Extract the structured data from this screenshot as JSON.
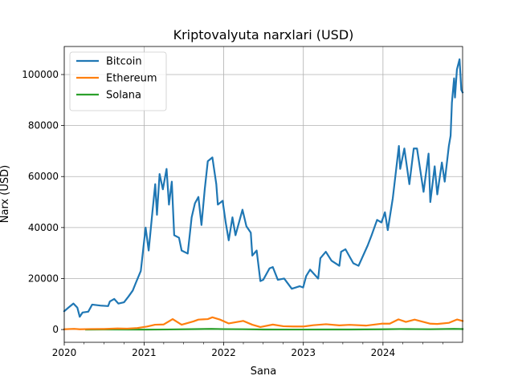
{
  "chart_data": {
    "type": "line",
    "title": "Kriptovalyuta narxlari (USD)",
    "xlabel": "Sana",
    "ylabel": "Narx (USD)",
    "xlim": [
      "2020-01-01",
      "2024-12-31"
    ],
    "ylim": [
      -5000,
      111000
    ],
    "x_ticks": [
      {
        "date": "2020-01-01",
        "label": "2020"
      },
      {
        "date": "2021-01-01",
        "label": "2021"
      },
      {
        "date": "2022-01-01",
        "label": "2022"
      },
      {
        "date": "2023-01-01",
        "label": "2023"
      },
      {
        "date": "2024-01-01",
        "label": "2024"
      }
    ],
    "x_minor_ticks": [
      "2020-04-01",
      "2020-07-01",
      "2020-10-01",
      "2021-04-01",
      "2021-07-01",
      "2021-10-01",
      "2022-04-01",
      "2022-07-01",
      "2022-10-01",
      "2023-04-01",
      "2023-07-01",
      "2023-10-01",
      "2024-04-01",
      "2024-07-01",
      "2024-10-01"
    ],
    "y_ticks": [
      {
        "value": 0,
        "label": "0"
      },
      {
        "value": 20000,
        "label": "20000"
      },
      {
        "value": 40000,
        "label": "40000"
      },
      {
        "value": 60000,
        "label": "60000"
      },
      {
        "value": 80000,
        "label": "80000"
      },
      {
        "value": 100000,
        "label": "100000"
      }
    ],
    "grid": true,
    "legend": "top-left",
    "series": [
      {
        "name": "Bitcoin",
        "color": "#1f77b4",
        "points": [
          [
            "2020-01-01",
            7200
          ],
          [
            "2020-01-20",
            8600
          ],
          [
            "2020-02-12",
            10200
          ],
          [
            "2020-03-01",
            8600
          ],
          [
            "2020-03-12",
            5000
          ],
          [
            "2020-03-25",
            6700
          ],
          [
            "2020-04-20",
            7000
          ],
          [
            "2020-05-08",
            9800
          ],
          [
            "2020-06-15",
            9400
          ],
          [
            "2020-07-20",
            9200
          ],
          [
            "2020-07-28",
            11000
          ],
          [
            "2020-08-17",
            12000
          ],
          [
            "2020-09-05",
            10200
          ],
          [
            "2020-10-01",
            10700
          ],
          [
            "2020-10-21",
            12900
          ],
          [
            "2020-11-10",
            15300
          ],
          [
            "2020-11-25",
            18500
          ],
          [
            "2020-12-17",
            23000
          ],
          [
            "2021-01-08",
            40000
          ],
          [
            "2021-01-22",
            31000
          ],
          [
            "2021-02-08",
            46000
          ],
          [
            "2021-02-21",
            57000
          ],
          [
            "2021-03-01",
            45000
          ],
          [
            "2021-03-13",
            61000
          ],
          [
            "2021-03-28",
            55000
          ],
          [
            "2021-04-14",
            63000
          ],
          [
            "2021-04-25",
            49000
          ],
          [
            "2021-05-08",
            58000
          ],
          [
            "2021-05-19",
            37000
          ],
          [
            "2021-06-10",
            36000
          ],
          [
            "2021-06-22",
            31000
          ],
          [
            "2021-07-20",
            29800
          ],
          [
            "2021-08-07",
            44000
          ],
          [
            "2021-08-22",
            49500
          ],
          [
            "2021-09-07",
            52000
          ],
          [
            "2021-09-21",
            41000
          ],
          [
            "2021-10-06",
            55000
          ],
          [
            "2021-10-20",
            66000
          ],
          [
            "2021-11-10",
            67500
          ],
          [
            "2021-11-28",
            57000
          ],
          [
            "2021-12-05",
            49000
          ],
          [
            "2021-12-27",
            50500
          ],
          [
            "2022-01-10",
            42000
          ],
          [
            "2022-01-24",
            35000
          ],
          [
            "2022-02-10",
            44000
          ],
          [
            "2022-02-24",
            37000
          ],
          [
            "2022-03-28",
            47000
          ],
          [
            "2022-04-15",
            40500
          ],
          [
            "2022-05-05",
            38000
          ],
          [
            "2022-05-12",
            29000
          ],
          [
            "2022-06-01",
            31000
          ],
          [
            "2022-06-18",
            19000
          ],
          [
            "2022-07-01",
            19500
          ],
          [
            "2022-07-30",
            24000
          ],
          [
            "2022-08-14",
            24500
          ],
          [
            "2022-09-06",
            19500
          ],
          [
            "2022-10-05",
            20000
          ],
          [
            "2022-11-09",
            16000
          ],
          [
            "2022-12-15",
            17000
          ],
          [
            "2022-12-31",
            16500
          ],
          [
            "2023-01-14",
            21000
          ],
          [
            "2023-02-01",
            23500
          ],
          [
            "2023-03-10",
            20000
          ],
          [
            "2023-03-20",
            28000
          ],
          [
            "2023-04-14",
            30500
          ],
          [
            "2023-05-10",
            27000
          ],
          [
            "2023-06-15",
            25000
          ],
          [
            "2023-06-23",
            30500
          ],
          [
            "2023-07-13",
            31500
          ],
          [
            "2023-08-18",
            26000
          ],
          [
            "2023-09-11",
            25000
          ],
          [
            "2023-10-23",
            33000
          ],
          [
            "2023-11-10",
            37000
          ],
          [
            "2023-12-05",
            43000
          ],
          [
            "2023-12-25",
            42000
          ],
          [
            "2024-01-10",
            46000
          ],
          [
            "2024-01-23",
            39000
          ],
          [
            "2024-02-15",
            51500
          ],
          [
            "2024-02-28",
            61000
          ],
          [
            "2024-03-14",
            72000
          ],
          [
            "2024-03-20",
            63000
          ],
          [
            "2024-04-08",
            71000
          ],
          [
            "2024-05-01",
            57000
          ],
          [
            "2024-05-21",
            71000
          ],
          [
            "2024-06-05",
            71000
          ],
          [
            "2024-07-05",
            54000
          ],
          [
            "2024-07-28",
            69000
          ],
          [
            "2024-08-05",
            50000
          ],
          [
            "2024-08-25",
            64000
          ],
          [
            "2024-09-06",
            53000
          ],
          [
            "2024-09-27",
            65500
          ],
          [
            "2024-10-10",
            58000
          ],
          [
            "2024-10-29",
            72000
          ],
          [
            "2024-11-06",
            76000
          ],
          [
            "2024-11-12",
            89000
          ],
          [
            "2024-11-22",
            98500
          ],
          [
            "2024-11-26",
            91000
          ],
          [
            "2024-12-05",
            102000
          ],
          [
            "2024-12-17",
            106000
          ],
          [
            "2024-12-25",
            94000
          ],
          [
            "2024-12-31",
            93000
          ]
        ]
      },
      {
        "name": "Ethereum",
        "color": "#ff7f0e",
        "points": [
          [
            "2020-01-01",
            130
          ],
          [
            "2020-02-15",
            280
          ],
          [
            "2020-03-12",
            110
          ],
          [
            "2020-05-01",
            210
          ],
          [
            "2020-07-01",
            230
          ],
          [
            "2020-09-01",
            430
          ],
          [
            "2020-10-15",
            370
          ],
          [
            "2020-12-01",
            600
          ],
          [
            "2021-01-15",
            1200
          ],
          [
            "2021-02-20",
            1900
          ],
          [
            "2021-04-01",
            2000
          ],
          [
            "2021-05-12",
            4100
          ],
          [
            "2021-06-22",
            1900
          ],
          [
            "2021-08-15",
            3200
          ],
          [
            "2021-09-07",
            3900
          ],
          [
            "2021-10-20",
            4100
          ],
          [
            "2021-11-10",
            4800
          ],
          [
            "2021-12-15",
            3900
          ],
          [
            "2022-01-24",
            2400
          ],
          [
            "2022-03-31",
            3400
          ],
          [
            "2022-05-12",
            1900
          ],
          [
            "2022-06-18",
            1000
          ],
          [
            "2022-08-14",
            1950
          ],
          [
            "2022-10-01",
            1300
          ],
          [
            "2022-11-15",
            1200
          ],
          [
            "2023-01-01",
            1200
          ],
          [
            "2023-02-15",
            1700
          ],
          [
            "2023-04-15",
            2100
          ],
          [
            "2023-06-15",
            1650
          ],
          [
            "2023-08-01",
            1850
          ],
          [
            "2023-10-15",
            1550
          ],
          [
            "2023-12-25",
            2300
          ],
          [
            "2024-02-01",
            2300
          ],
          [
            "2024-03-12",
            4000
          ],
          [
            "2024-04-15",
            3000
          ],
          [
            "2024-05-25",
            3900
          ],
          [
            "2024-08-05",
            2300
          ],
          [
            "2024-09-06",
            2200
          ],
          [
            "2024-10-30",
            2650
          ],
          [
            "2024-12-06",
            3950
          ],
          [
            "2024-12-31",
            3350
          ]
        ]
      },
      {
        "name": "Solana",
        "color": "#2ca02c",
        "points": [
          [
            "2020-04-10",
            0.8
          ],
          [
            "2020-09-01",
            4
          ],
          [
            "2020-12-31",
            1.5
          ],
          [
            "2021-03-01",
            15
          ],
          [
            "2021-05-01",
            45
          ],
          [
            "2021-09-06",
            190
          ],
          [
            "2021-11-06",
            258
          ],
          [
            "2022-01-01",
            170
          ],
          [
            "2022-04-01",
            125
          ],
          [
            "2022-07-01",
            35
          ],
          [
            "2022-11-10",
            14
          ],
          [
            "2022-12-31",
            10
          ],
          [
            "2023-04-01",
            22
          ],
          [
            "2023-08-01",
            24
          ],
          [
            "2023-12-25",
            110
          ],
          [
            "2024-03-18",
            200
          ],
          [
            "2024-06-01",
            170
          ],
          [
            "2024-08-05",
            130
          ],
          [
            "2024-11-22",
            255
          ],
          [
            "2024-12-31",
            190
          ]
        ]
      }
    ]
  }
}
